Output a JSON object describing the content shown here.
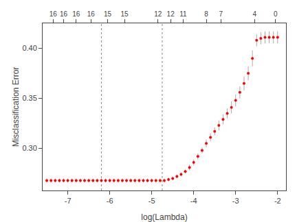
{
  "chart_data": {
    "type": "scatter",
    "title": "",
    "xlabel": "log(Lambda)",
    "ylabel": "Misclassification Error",
    "xlim": [
      -7.6,
      -1.8
    ],
    "ylim": [
      0.258,
      0.425
    ],
    "xticks": [
      -7,
      -6,
      -5,
      -4,
      -3,
      -2
    ],
    "yticks": [
      {
        "value": 0.3,
        "label": "0.30"
      },
      0.35,
      {
        "value": 0.4,
        "label": "0.40"
      }
    ],
    "x2ticks": [
      {
        "value": -7.35,
        "label": "16"
      },
      {
        "value": -7.1,
        "label": "16"
      },
      {
        "value": -6.8,
        "label": "16"
      },
      {
        "value": -6.45,
        "label": "16"
      },
      {
        "value": -6.05,
        "label": "15"
      },
      {
        "value": -5.65,
        "label": "15"
      },
      {
        "value": -4.85,
        "label": "12"
      },
      {
        "value": -4.55,
        "label": "12"
      },
      {
        "value": -4.25,
        "label": "11"
      },
      {
        "value": -3.7,
        "label": "8"
      },
      {
        "value": -3.35,
        "label": "7"
      },
      {
        "value": -2.55,
        "label": "4"
      },
      {
        "value": -2.05,
        "label": "0"
      }
    ],
    "grid": false,
    "x": [
      -7.5,
      -7.4,
      -7.3,
      -7.2,
      -7.1,
      -7.0,
      -6.9,
      -6.8,
      -6.7,
      -6.6,
      -6.5,
      -6.4,
      -6.3,
      -6.2,
      -6.1,
      -6.0,
      -5.9,
      -5.8,
      -5.7,
      -5.6,
      -5.5,
      -5.4,
      -5.3,
      -5.2,
      -5.1,
      -5.0,
      -4.9,
      -4.8,
      -4.7,
      -4.6,
      -4.5,
      -4.4,
      -4.3,
      -4.2,
      -4.1,
      -4.0,
      -3.9,
      -3.8,
      -3.7,
      -3.6,
      -3.5,
      -3.4,
      -3.3,
      -3.2,
      -3.1,
      -3.0,
      -2.9,
      -2.8,
      -2.7,
      -2.6,
      -2.5,
      -2.4,
      -2.3,
      -2.2,
      -2.1,
      -2.0
    ],
    "series": [
      {
        "color": "red",
        "marker": "circle",
        "values": [
          0.268,
          0.268,
          0.268,
          0.268,
          0.268,
          0.268,
          0.268,
          0.268,
          0.268,
          0.268,
          0.268,
          0.268,
          0.268,
          0.268,
          0.268,
          0.268,
          0.268,
          0.268,
          0.268,
          0.268,
          0.268,
          0.268,
          0.268,
          0.268,
          0.268,
          0.268,
          0.268,
          0.268,
          0.268,
          0.269,
          0.27,
          0.272,
          0.274,
          0.277,
          0.281,
          0.286,
          0.292,
          0.298,
          0.305,
          0.311,
          0.317,
          0.323,
          0.329,
          0.335,
          0.341,
          0.348,
          0.356,
          0.365,
          0.375,
          0.39,
          0.408,
          0.41,
          0.411,
          0.411,
          0.411,
          0.411
        ],
        "errors": {
          "color": "#aaaaaa",
          "values": [
            0.002,
            0.002,
            0.002,
            0.002,
            0.002,
            0.002,
            0.002,
            0.002,
            0.002,
            0.002,
            0.002,
            0.002,
            0.002,
            0.002,
            0.002,
            0.002,
            0.002,
            0.002,
            0.002,
            0.002,
            0.002,
            0.002,
            0.002,
            0.002,
            0.002,
            0.002,
            0.002,
            0.002,
            0.002,
            0.002,
            0.002,
            0.002,
            0.002,
            0.002,
            0.003,
            0.003,
            0.003,
            0.003,
            0.004,
            0.004,
            0.004,
            0.005,
            0.005,
            0.005,
            0.006,
            0.006,
            0.006,
            0.007,
            0.007,
            0.008,
            0.006,
            0.006,
            0.006,
            0.006,
            0.006,
            0.006
          ]
        }
      }
    ],
    "vlines": [
      {
        "value": -6.2,
        "color": "#888888",
        "line_style": "dotted"
      },
      {
        "value": -4.75,
        "color": "#888888",
        "line_style": "dotted"
      }
    ]
  }
}
